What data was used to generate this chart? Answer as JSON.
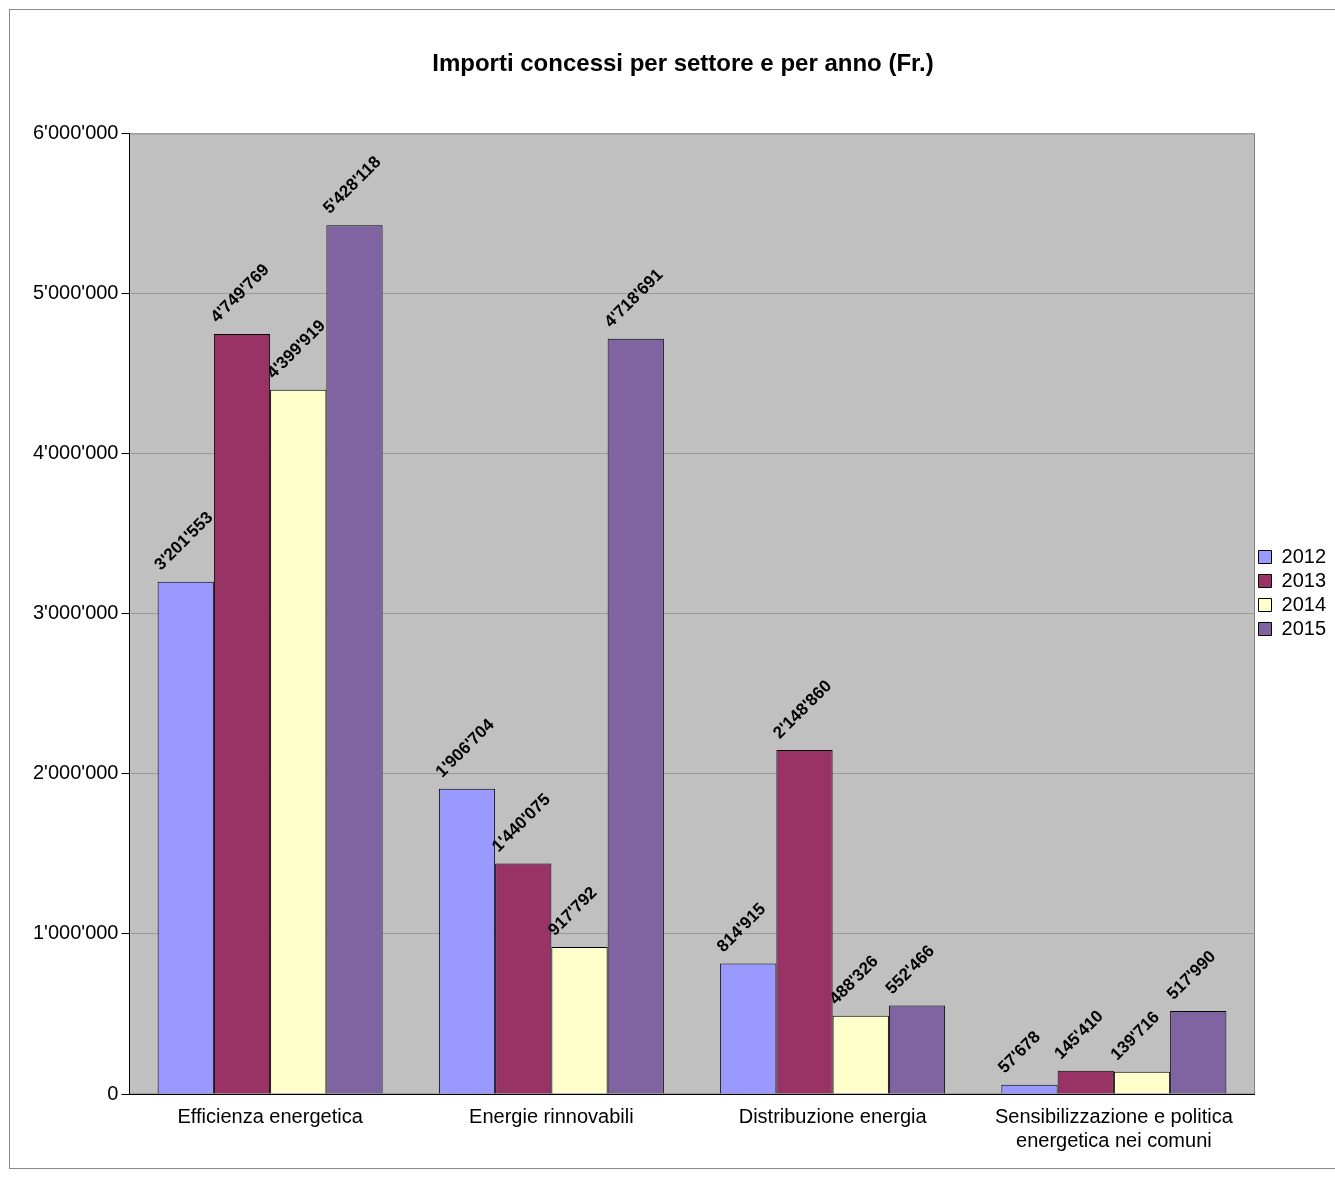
{
  "chart_data": {
    "type": "bar",
    "title": "Importi concessi per settore e per anno (Fr.)",
    "categories": [
      "Efficienza energetica",
      "Energie rinnovabili",
      "Distribuzione energia",
      "Sensibilizzazione e politica energetica nei comuni"
    ],
    "series": [
      {
        "name": "2012",
        "color": "#9999ff",
        "values": [
          3201553,
          1906704,
          814915,
          57678
        ],
        "value_labels": [
          "3'201'553",
          "1'906'704",
          "814'915",
          "57'678"
        ]
      },
      {
        "name": "2013",
        "color": "#993366",
        "values": [
          4749769,
          1440075,
          2148860,
          145410
        ],
        "value_labels": [
          "4'749'769",
          "1'440'075",
          "2'148'860",
          "145'410"
        ]
      },
      {
        "name": "2014",
        "color": "#ffffcc",
        "values": [
          4399919,
          917792,
          488326,
          139716
        ],
        "value_labels": [
          "4'399'919",
          "917'792",
          "488'326",
          "139'716"
        ]
      },
      {
        "name": "2015",
        "color": "#8064a2",
        "values": [
          5428118,
          4718691,
          552466,
          517990
        ],
        "value_labels": [
          "5'428'118",
          "4'718'691",
          "552'466",
          "517'990"
        ]
      }
    ],
    "ylim": [
      0,
      6000000
    ],
    "yticks": [
      0,
      {
        "value": 1000000,
        "label": "1'000'000"
      },
      {
        "value": 2000000,
        "label": "2'000'000"
      },
      {
        "value": 3000000,
        "label": "3'000'000"
      },
      {
        "value": 4000000,
        "label": "4'000'000"
      },
      {
        "value": 5000000,
        "label": "5'000'000"
      },
      {
        "value": 6000000,
        "label": "6'000'000"
      }
    ],
    "grid": "y",
    "legend": "right"
  }
}
